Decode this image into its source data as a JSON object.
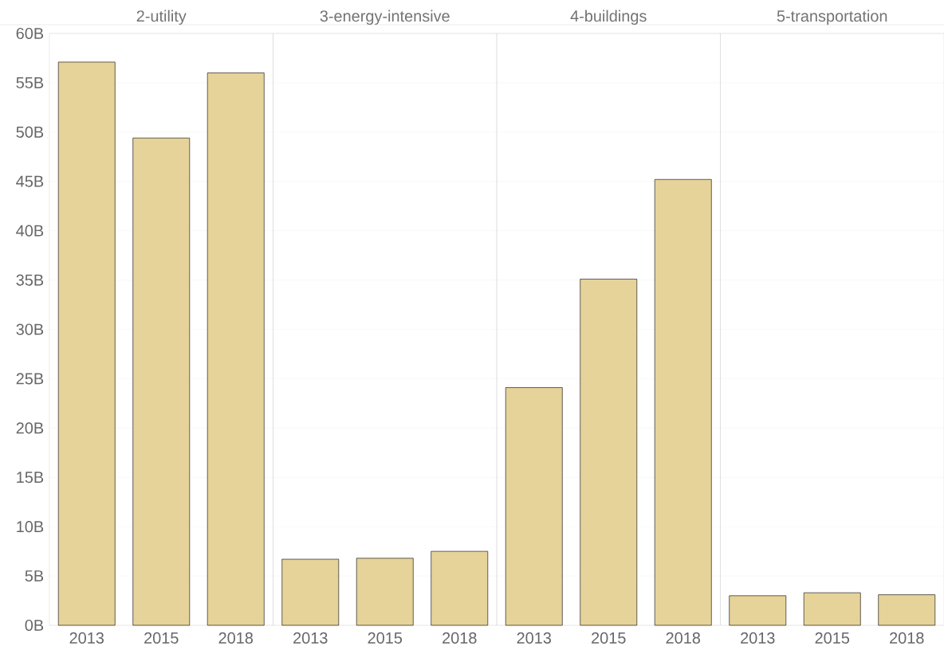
{
  "chart_data": [
    {
      "type": "bar",
      "title": "2-utility",
      "categories": [
        "2013",
        "2015",
        "2018"
      ],
      "values": [
        57.1,
        49.4,
        56.0
      ],
      "color": "#e6d39a",
      "ylim": [
        0,
        60
      ],
      "yticks": [
        {
          "value": 0,
          "label": "0B"
        },
        {
          "value": 5,
          "label": "5B"
        },
        {
          "value": 10,
          "label": "10B"
        },
        {
          "value": 15,
          "label": "15B"
        },
        {
          "value": 20,
          "label": "20B"
        },
        {
          "value": 25,
          "label": "25B"
        },
        {
          "value": 30,
          "label": "30B"
        },
        {
          "value": 35,
          "label": "35B"
        },
        {
          "value": 40,
          "label": "40B"
        },
        {
          "value": 45,
          "label": "45B"
        },
        {
          "value": 50,
          "label": "50B"
        },
        {
          "value": 55,
          "label": "55B"
        },
        {
          "value": 60,
          "label": "60B"
        }
      ],
      "grid": "y"
    },
    {
      "type": "bar",
      "title": "3-energy-intensive",
      "categories": [
        "2013",
        "2015",
        "2018"
      ],
      "values": [
        6.7,
        6.8,
        7.5
      ],
      "color": "#e6d39a",
      "ylim": [
        0,
        60
      ],
      "yticks": [
        {
          "value": 0,
          "label": null
        },
        {
          "value": 5,
          "label": null
        },
        {
          "value": 10,
          "label": null
        },
        {
          "value": 15,
          "label": null
        },
        {
          "value": 20,
          "label": null
        },
        {
          "value": 25,
          "label": null
        },
        {
          "value": 30,
          "label": null
        },
        {
          "value": 35,
          "label": null
        },
        {
          "value": 40,
          "label": null
        },
        {
          "value": 45,
          "label": null
        },
        {
          "value": 50,
          "label": null
        },
        {
          "value": 55,
          "label": null
        },
        {
          "value": 60,
          "label": null
        }
      ],
      "grid": "y",
      "tick_labels": "x"
    },
    {
      "type": "bar",
      "title": "4-buildings",
      "categories": [
        "2013",
        "2015",
        "2018"
      ],
      "values": [
        24.1,
        35.1,
        45.2
      ],
      "color": "#e6d39a",
      "ylim": [
        0,
        60
      ],
      "yticks": [
        {
          "value": 0,
          "label": null
        },
        {
          "value": 5,
          "label": null
        },
        {
          "value": 10,
          "label": null
        },
        {
          "value": 15,
          "label": null
        },
        {
          "value": 20,
          "label": null
        },
        {
          "value": 25,
          "label": null
        },
        {
          "value": 30,
          "label": null
        },
        {
          "value": 35,
          "label": null
        },
        {
          "value": 40,
          "label": null
        },
        {
          "value": 45,
          "label": null
        },
        {
          "value": 50,
          "label": null
        },
        {
          "value": 55,
          "label": null
        },
        {
          "value": 60,
          "label": null
        }
      ],
      "grid": "y",
      "tick_labels": "x"
    },
    {
      "type": "bar",
      "title": "5-transportation",
      "categories": [
        "2013",
        "2015",
        "2018"
      ],
      "values": [
        3.0,
        3.3,
        3.1
      ],
      "color": "#e6d39a",
      "ylim": [
        0,
        60
      ],
      "yticks": [
        {
          "value": 0,
          "label": null
        },
        {
          "value": 5,
          "label": null
        },
        {
          "value": 10,
          "label": null
        },
        {
          "value": 15,
          "label": null
        },
        {
          "value": 20,
          "label": null
        },
        {
          "value": 25,
          "label": null
        },
        {
          "value": 30,
          "label": null
        },
        {
          "value": 35,
          "label": null
        },
        {
          "value": 40,
          "label": null
        },
        {
          "value": 45,
          "label": null
        },
        {
          "value": 50,
          "label": null
        },
        {
          "value": 55,
          "label": null
        },
        {
          "value": 60,
          "label": null
        }
      ],
      "grid": "y",
      "tick_labels": "x"
    }
  ]
}
